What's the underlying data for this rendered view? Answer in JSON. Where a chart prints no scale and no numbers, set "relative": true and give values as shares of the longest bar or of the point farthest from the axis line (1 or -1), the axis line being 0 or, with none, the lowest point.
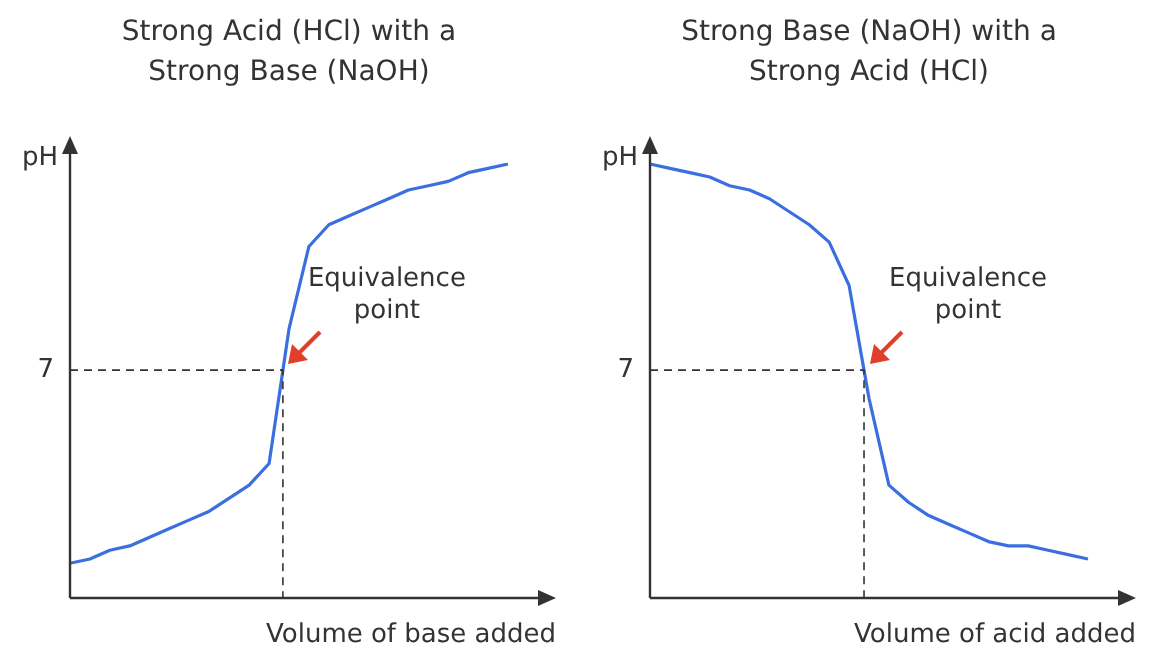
{
  "chart_data": [
    {
      "type": "line",
      "title": "Strong Acid (HCl) with a Strong Base (NaOH)",
      "xlabel": "Volume of base added",
      "ylabel": "pH",
      "relative": true,
      "marker": "none",
      "line_style": "solid",
      "categories": [
        null,
        null,
        null,
        null,
        null,
        null,
        null,
        null,
        null,
        null,
        null,
        null,
        null,
        null,
        null,
        null,
        null,
        null,
        null,
        null,
        null,
        null,
        null
      ],
      "series": [
        {
          "color": "#3b6fe0",
          "values": [
            0.08,
            0.09,
            0.11,
            0.12,
            0.14,
            0.16,
            0.18,
            0.2,
            0.23,
            0.26,
            0.31,
            0.62,
            0.81,
            0.86,
            0.88,
            0.9,
            0.92,
            0.94,
            0.95,
            0.96,
            0.98,
            0.99,
            1
          ]
        }
      ],
      "ref_lines": [
        {
          "axis": "y",
          "value": 0.525,
          "line_style": "dashed",
          "color": "#333333"
        }
      ],
      "annotations": [
        "7",
        "Equivalence point"
      ]
    },
    {
      "type": "line",
      "title": "Strong Base (NaOH) with a Strong Acid (HCl)",
      "xlabel": "Volume of acid added",
      "ylabel": "pH",
      "relative": true,
      "marker": "none",
      "line_style": "solid",
      "categories": [
        null,
        null,
        null,
        null,
        null,
        null,
        null,
        null,
        null,
        null,
        null,
        null,
        null,
        null,
        null,
        null,
        null,
        null,
        null,
        null,
        null,
        null,
        null
      ],
      "series": [
        {
          "color": "#3b6fe0",
          "values": [
            1,
            0.99,
            0.98,
            0.97,
            0.95,
            0.94,
            0.92,
            0.89,
            0.86,
            0.82,
            0.72,
            0.46,
            0.26,
            0.22,
            0.19,
            0.17,
            0.15,
            0.13,
            0.12,
            0.12,
            0.11,
            0.1,
            0.09
          ]
        }
      ],
      "ref_lines": [
        {
          "axis": "y",
          "value": 0.525,
          "line_style": "dashed",
          "color": "#333333"
        }
      ],
      "annotations": [
        "7",
        "Equivalence point"
      ]
    }
  ]
}
